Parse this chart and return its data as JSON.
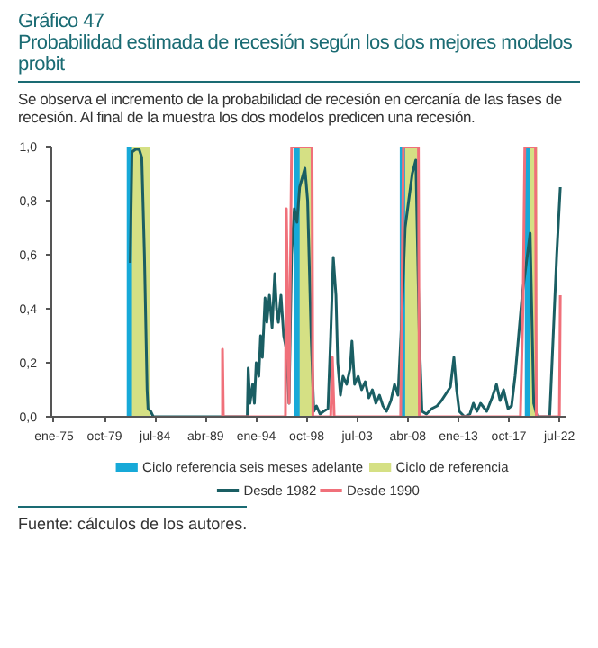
{
  "chart_data": {
    "type": "line",
    "title": "Gráfico 47",
    "subtitle": "Probabilidad estimada de recesión según los dos mejores modelos probit",
    "annotations": [
      "Se observa el incremento de la probabilidad de recesión en cercanía de las fases de recesión. Al final de la muestra los dos modelos predicen una recesión.",
      "Fuente: cálculos de los autores."
    ],
    "xlim": [
      "1974-10",
      "2023-03"
    ],
    "ylim": [
      0,
      1.0
    ],
    "xticks": [
      {
        "value": "1975-01",
        "label": "ene-75"
      },
      {
        "value": "1979-10",
        "label": "oct-79"
      },
      {
        "value": "1984-07",
        "label": "jul-84"
      },
      {
        "value": "1989-04",
        "label": "abr-89"
      },
      {
        "value": "1994-01",
        "label": "ene-94"
      },
      {
        "value": "1998-10",
        "label": "oct-98"
      },
      {
        "value": "2003-07",
        "label": "jul-03"
      },
      {
        "value": "2008-04",
        "label": "abr-08"
      },
      {
        "value": "2013-01",
        "label": "ene-13"
      },
      {
        "value": "2017-10",
        "label": "oct-17"
      },
      {
        "value": "2022-07",
        "label": "jul-22"
      }
    ],
    "yticks": [
      {
        "value": 0,
        "label": "0,0"
      },
      {
        "value": 0.2,
        "label": "0,2"
      },
      {
        "value": 0.4,
        "label": "0,4"
      },
      {
        "value": 0.6,
        "label": "0,6"
      },
      {
        "value": 0.8,
        "label": "0,8"
      },
      {
        "value": 1.0,
        "label": "1,0"
      }
    ],
    "bands": [
      {
        "axis": "x",
        "from": "1981-11",
        "to": "1983-07",
        "label": "Ciclo referencia seis meses adelante",
        "color": "#17a9d8"
      },
      {
        "axis": "x",
        "from": "1997-08",
        "to": "1998-11",
        "color": "#17a9d8"
      },
      {
        "axis": "x",
        "from": "2007-07",
        "to": "2008-10",
        "color": "#17a9d8"
      },
      {
        "axis": "x",
        "from": "2019-04",
        "to": "2019-12",
        "color": "#17a9d8"
      },
      {
        "axis": "x",
        "from": "1982-05",
        "to": "1984-01",
        "label": "Ciclo de referencia",
        "color": "#d5e084"
      },
      {
        "axis": "x",
        "from": "1998-02",
        "to": "1999-05",
        "color": "#d5e084"
      },
      {
        "axis": "x",
        "from": "2008-01",
        "to": "2009-04",
        "color": "#d5e084"
      },
      {
        "axis": "x",
        "from": "2019-10",
        "to": "2020-06",
        "color": "#d5e084"
      }
    ],
    "series": [
      {
        "name": "Desde 1982",
        "color": "#1a5e63",
        "x": [
          "1982-03",
          "1982-05",
          "1982-09",
          "1983-01",
          "1983-04",
          "1983-07",
          "1983-10",
          "1983-11",
          "1984-02",
          "1984-05",
          "1993-03",
          "1993-04",
          "1993-06",
          "1993-09",
          "1993-11",
          "1994-01",
          "1994-04",
          "1994-06",
          "1994-08",
          "1994-11",
          "1995-01",
          "1995-04",
          "1995-07",
          "1995-10",
          "1995-12",
          "1996-02",
          "1996-05",
          "1996-08",
          "1996-11",
          "1997-02",
          "1997-05",
          "1997-08",
          "1997-11",
          "1998-02",
          "1998-08",
          "1998-11",
          "1999-03",
          "1999-06",
          "1999-09",
          "2000-01",
          "2000-05",
          "2000-10",
          "2001-01",
          "2001-04",
          "2001-07",
          "2001-09",
          "2001-12",
          "2002-03",
          "2002-07",
          "2002-11",
          "2003-01",
          "2003-04",
          "2003-08",
          "2003-12",
          "2004-04",
          "2004-08",
          "2004-12",
          "2005-04",
          "2005-08",
          "2005-12",
          "2006-04",
          "2006-09",
          "2007-01",
          "2007-05",
          "2007-09",
          "2008-01",
          "2008-05",
          "2008-09",
          "2009-01",
          "2009-05",
          "2009-08",
          "2010-01",
          "2010-07",
          "2011-01",
          "2011-06",
          "2011-12",
          "2012-04",
          "2012-08",
          "2012-11",
          "2013-02",
          "2013-08",
          "2014-02",
          "2014-06",
          "2014-10",
          "2015-02",
          "2015-09",
          "2016-03",
          "2016-08",
          "2016-12",
          "2017-04",
          "2017-09",
          "2018-01",
          "2018-05",
          "2018-09",
          "2019-01",
          "2019-05",
          "2019-10",
          "2020-02",
          "2020-06",
          "2021-08",
          "2021-12",
          "2022-04",
          "2022-08"
        ],
        "values": [
          0.57,
          0.98,
          0.99,
          0.99,
          0.96,
          0.6,
          0.1,
          0.03,
          0.02,
          0,
          0,
          0.18,
          0.05,
          0.12,
          0.05,
          0.2,
          0.15,
          0.3,
          0.22,
          0.44,
          0.35,
          0.45,
          0.33,
          0.53,
          0.4,
          0.35,
          0.45,
          0.3,
          0.25,
          0.05,
          0.6,
          0.77,
          0.72,
          0.85,
          0.92,
          0.8,
          0.3,
          0.02,
          0.04,
          0.01,
          0.02,
          0.03,
          0.3,
          0.59,
          0.45,
          0.2,
          0.08,
          0.15,
          0.12,
          0.18,
          0.28,
          0.12,
          0.15,
          0.1,
          0.13,
          0.07,
          0.1,
          0.05,
          0.08,
          0.04,
          0.02,
          0.06,
          0.12,
          0.08,
          0.35,
          0.7,
          0.8,
          0.9,
          0.95,
          0.3,
          0.02,
          0.01,
          0.03,
          0.04,
          0.06,
          0.09,
          0.11,
          0.22,
          0.1,
          0.02,
          0,
          0.01,
          0.05,
          0.02,
          0.05,
          0.02,
          0.07,
          0.12,
          0.06,
          0.1,
          0.03,
          0.04,
          0.15,
          0.3,
          0.45,
          0.55,
          0.68,
          0.05,
          0,
          0,
          0.3,
          0.6,
          0.85
        ]
      },
      {
        "name": "Desde 1990",
        "color": "#f0707a",
        "x": [
          "1990-11",
          "1990-11",
          "1990-12",
          "1996-10",
          "1996-11",
          "1997-02",
          "1997-05",
          "1999-04",
          "1999-05",
          "2001-01",
          "2001-03",
          "2001-05",
          "2007-08",
          "2007-11",
          "2009-04",
          "2009-05",
          "2018-11",
          "2019-02",
          "2019-04",
          "2020-04",
          "2020-05",
          "2022-07",
          "2022-08"
        ],
        "values": [
          0,
          0.25,
          0,
          0,
          0.77,
          0.05,
          1.0,
          1.0,
          0,
          0,
          0.22,
          0,
          0,
          1.0,
          1.0,
          0,
          0,
          0.42,
          1.0,
          1.0,
          0,
          0,
          0.45
        ]
      }
    ],
    "legend": "bottom"
  }
}
